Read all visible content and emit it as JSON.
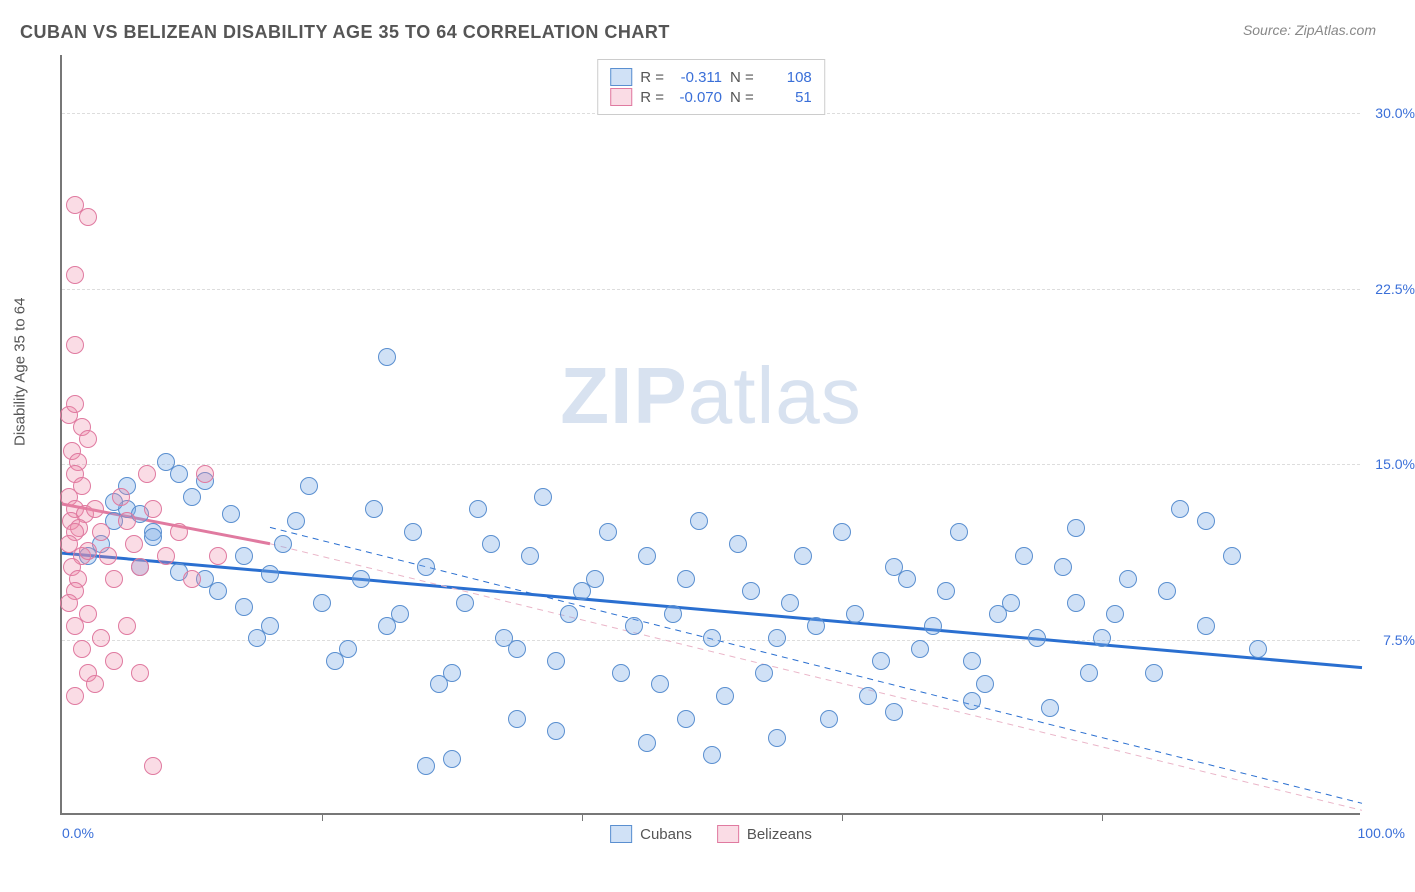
{
  "title": "CUBAN VS BELIZEAN DISABILITY AGE 35 TO 64 CORRELATION CHART",
  "source": "Source: ZipAtlas.com",
  "watermark_bold": "ZIP",
  "watermark_light": "atlas",
  "ylabel": "Disability Age 35 to 64",
  "chart": {
    "type": "scatter",
    "xlim": [
      0,
      100
    ],
    "ylim": [
      0,
      32.5
    ],
    "yticks": [
      7.5,
      15.0,
      22.5,
      30.0
    ],
    "ytick_labels": [
      "7.5%",
      "15.0%",
      "22.5%",
      "30.0%"
    ],
    "xticks": [
      0,
      20,
      40,
      60,
      80,
      100
    ],
    "xtick_labels_ends": [
      "0.0%",
      "100.0%"
    ],
    "grid_color": "#dddddd",
    "axis_color": "#777777",
    "background": "#ffffff",
    "series": [
      {
        "name": "Cubans",
        "color_fill": "rgba(120,170,230,0.35)",
        "color_stroke": "#5a8fd0",
        "marker_size": 18,
        "R": "-0.311",
        "N": "108",
        "trend": {
          "x1": 0,
          "y1": 11.2,
          "x2": 100,
          "y2": 6.3,
          "stroke": "#2a6fd0",
          "width": 3,
          "dash": "none"
        },
        "trend_ext": {
          "x1": 16,
          "y1": 12.3,
          "x2": 100,
          "y2": 0.5,
          "stroke": "#2a6fd0",
          "width": 1,
          "dash": "6,5"
        },
        "points": [
          [
            25,
            19.5
          ],
          [
            5,
            13
          ],
          [
            7,
            12
          ],
          [
            9,
            14.5
          ],
          [
            11,
            10
          ],
          [
            14,
            11
          ],
          [
            16,
            8
          ],
          [
            18,
            12.5
          ],
          [
            20,
            9
          ],
          [
            22,
            7
          ],
          [
            24,
            13
          ],
          [
            26,
            8.5
          ],
          [
            28,
            10.5
          ],
          [
            30,
            6
          ],
          [
            32,
            13
          ],
          [
            34,
            7.5
          ],
          [
            36,
            11
          ],
          [
            38,
            6.5
          ],
          [
            40,
            9.5
          ],
          [
            42,
            12
          ],
          [
            44,
            8
          ],
          [
            46,
            5.5
          ],
          [
            48,
            10
          ],
          [
            50,
            7.5
          ],
          [
            52,
            11.5
          ],
          [
            54,
            6
          ],
          [
            56,
            9
          ],
          [
            58,
            8
          ],
          [
            60,
            12
          ],
          [
            62,
            5
          ],
          [
            64,
            10.5
          ],
          [
            66,
            7
          ],
          [
            68,
            9.5
          ],
          [
            70,
            6.5
          ],
          [
            72,
            8.5
          ],
          [
            74,
            11
          ],
          [
            76,
            4.5
          ],
          [
            78,
            9
          ],
          [
            80,
            7.5
          ],
          [
            82,
            10
          ],
          [
            84,
            6
          ],
          [
            86,
            13
          ],
          [
            88,
            8
          ],
          [
            90,
            11
          ],
          [
            92,
            7
          ],
          [
            3,
            11.5
          ],
          [
            4,
            12.5
          ],
          [
            5,
            14
          ],
          [
            6,
            10.5
          ],
          [
            8,
            15
          ],
          [
            10,
            13.5
          ],
          [
            12,
            9.5
          ],
          [
            15,
            7.5
          ],
          [
            17,
            11.5
          ],
          [
            19,
            14
          ],
          [
            21,
            6.5
          ],
          [
            23,
            10
          ],
          [
            25,
            8
          ],
          [
            27,
            12
          ],
          [
            29,
            5.5
          ],
          [
            31,
            9
          ],
          [
            33,
            11.5
          ],
          [
            35,
            7
          ],
          [
            37,
            13.5
          ],
          [
            39,
            8.5
          ],
          [
            41,
            10
          ],
          [
            43,
            6
          ],
          [
            45,
            11
          ],
          [
            47,
            8.5
          ],
          [
            49,
            12.5
          ],
          [
            51,
            5
          ],
          [
            53,
            9.5
          ],
          [
            55,
            7.5
          ],
          [
            57,
            11
          ],
          [
            59,
            4
          ],
          [
            61,
            8.5
          ],
          [
            63,
            6.5
          ],
          [
            65,
            10
          ],
          [
            67,
            8
          ],
          [
            69,
            12
          ],
          [
            71,
            5.5
          ],
          [
            73,
            9
          ],
          [
            75,
            7.5
          ],
          [
            77,
            10.5
          ],
          [
            79,
            6
          ],
          [
            81,
            8.5
          ],
          [
            28,
            2
          ],
          [
            30,
            2.3
          ],
          [
            35,
            4
          ],
          [
            38,
            3.5
          ],
          [
            45,
            3
          ],
          [
            48,
            4
          ],
          [
            50,
            2.5
          ],
          [
            55,
            3.2
          ],
          [
            13,
            12.8
          ],
          [
            16,
            10.2
          ],
          [
            6,
            12.8
          ],
          [
            2,
            11
          ],
          [
            4,
            13.3
          ],
          [
            7,
            11.8
          ],
          [
            9,
            10.3
          ],
          [
            11,
            14.2
          ],
          [
            14,
            8.8
          ],
          [
            88,
            12.5
          ],
          [
            64,
            4.3
          ],
          [
            70,
            4.8
          ],
          [
            85,
            9.5
          ],
          [
            78,
            12.2
          ]
        ]
      },
      {
        "name": "Belizeans",
        "color_fill": "rgba(240,140,170,0.30)",
        "color_stroke": "#e07aa0",
        "marker_size": 18,
        "R": "-0.070",
        "N": "51",
        "trend": {
          "x1": 0,
          "y1": 13.3,
          "x2": 16,
          "y2": 11.6,
          "stroke": "#e07aa0",
          "width": 3,
          "dash": "none"
        },
        "trend_ext": {
          "x1": 16,
          "y1": 11.6,
          "x2": 100,
          "y2": 0.2,
          "stroke": "#eab5c8",
          "width": 1,
          "dash": "6,5"
        },
        "points": [
          [
            1,
            26
          ],
          [
            2,
            25.5
          ],
          [
            1,
            23
          ],
          [
            1,
            20
          ],
          [
            0.5,
            17
          ],
          [
            1,
            17.5
          ],
          [
            1.5,
            16.5
          ],
          [
            2,
            16
          ],
          [
            0.8,
            15.5
          ],
          [
            1.2,
            15
          ],
          [
            1,
            14.5
          ],
          [
            1.5,
            14
          ],
          [
            0.5,
            13.5
          ],
          [
            1,
            13
          ],
          [
            1.8,
            12.8
          ],
          [
            0.7,
            12.5
          ],
          [
            1.3,
            12.2
          ],
          [
            1,
            12
          ],
          [
            0.5,
            11.5
          ],
          [
            1.5,
            11
          ],
          [
            2,
            11.2
          ],
          [
            0.8,
            10.5
          ],
          [
            1.2,
            10
          ],
          [
            1,
            9.5
          ],
          [
            2.5,
            13
          ],
          [
            3,
            12
          ],
          [
            3.5,
            11
          ],
          [
            4,
            10
          ],
          [
            4.5,
            13.5
          ],
          [
            5,
            12.5
          ],
          [
            5.5,
            11.5
          ],
          [
            6,
            10.5
          ],
          [
            6.5,
            14.5
          ],
          [
            7,
            13
          ],
          [
            8,
            11
          ],
          [
            9,
            12
          ],
          [
            10,
            10
          ],
          [
            11,
            14.5
          ],
          [
            12,
            11
          ],
          [
            1,
            8
          ],
          [
            1.5,
            7
          ],
          [
            2,
            6
          ],
          [
            1,
            5
          ],
          [
            2.5,
            5.5
          ],
          [
            3,
            7.5
          ],
          [
            4,
            6.5
          ],
          [
            5,
            8
          ],
          [
            6,
            6
          ],
          [
            7,
            2
          ],
          [
            0.5,
            9
          ],
          [
            2,
            8.5
          ]
        ]
      }
    ]
  },
  "legend": {
    "items": [
      "Cubans",
      "Belizeans"
    ]
  }
}
